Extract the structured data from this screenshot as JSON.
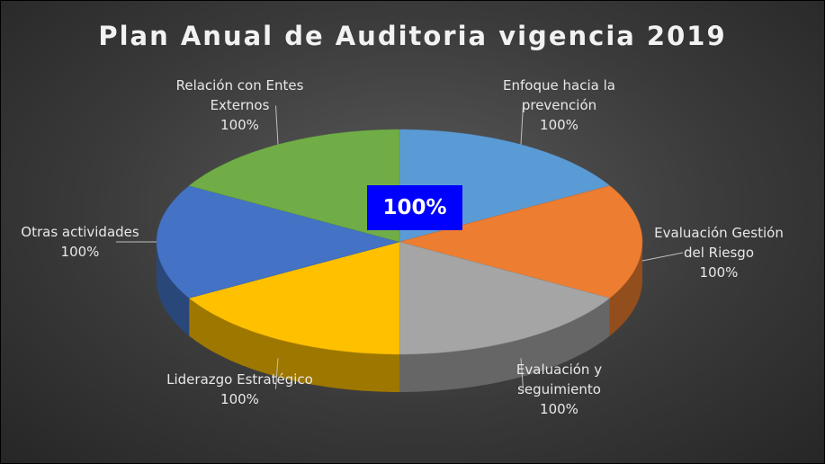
{
  "chart_data": {
    "type": "pie",
    "title": "Plan Anual de Auditoria vigencia 2019",
    "categories": [
      "Enfoque hacia la prevención",
      "Evaluación Gestión del Riesgo",
      "Evaluación y seguimiento",
      "Liderazgo Estratégico",
      "Otras actividades",
      "Relación con Entes Externos"
    ],
    "values": [
      100,
      100,
      100,
      100,
      100,
      100
    ],
    "value_labels": [
      "100%",
      "100%",
      "100%",
      "100%",
      "100%",
      "100%"
    ],
    "colors": [
      "#5b9bd5",
      "#ed7d31",
      "#a5a5a5",
      "#ffc000",
      "#4472c4",
      "#70ad47"
    ],
    "annotation": "100%"
  }
}
